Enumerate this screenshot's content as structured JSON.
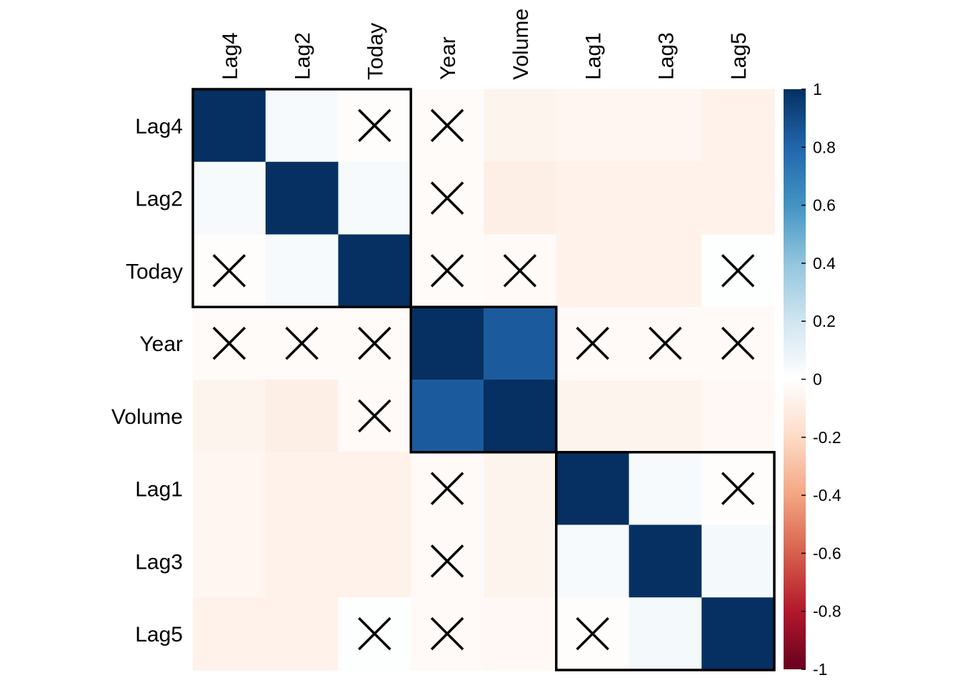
{
  "chart_data": {
    "type": "heatmap",
    "variables": [
      "Lag4",
      "Lag2",
      "Today",
      "Year",
      "Volume",
      "Lag1",
      "Lag3",
      "Lag5"
    ],
    "matrix": [
      [
        1.0,
        0.04,
        -0.01,
        -0.02,
        -0.06,
        -0.05,
        -0.05,
        -0.07
      ],
      [
        0.04,
        1.0,
        0.04,
        -0.02,
        -0.09,
        -0.07,
        -0.07,
        -0.07
      ],
      [
        -0.01,
        0.04,
        1.0,
        -0.02,
        -0.03,
        -0.07,
        -0.07,
        0.01
      ],
      [
        -0.02,
        -0.02,
        -0.02,
        1.0,
        0.84,
        -0.03,
        -0.03,
        -0.03
      ],
      [
        -0.06,
        -0.09,
        -0.03,
        0.84,
        1.0,
        -0.06,
        -0.06,
        -0.04
      ],
      [
        -0.05,
        -0.07,
        -0.07,
        -0.03,
        -0.06,
        1.0,
        0.04,
        -0.01
      ],
      [
        -0.05,
        -0.07,
        -0.07,
        -0.03,
        -0.06,
        0.04,
        1.0,
        0.05
      ],
      [
        -0.07,
        -0.07,
        0.01,
        -0.03,
        -0.04,
        -0.01,
        0.05,
        1.0
      ]
    ],
    "insignificant_cells": [
      [
        0,
        2
      ],
      [
        0,
        3
      ],
      [
        1,
        3
      ],
      [
        2,
        0
      ],
      [
        2,
        3
      ],
      [
        2,
        4
      ],
      [
        2,
        7
      ],
      [
        3,
        0
      ],
      [
        3,
        1
      ],
      [
        3,
        2
      ],
      [
        3,
        5
      ],
      [
        3,
        6
      ],
      [
        3,
        7
      ],
      [
        4,
        2
      ],
      [
        5,
        3
      ],
      [
        5,
        7
      ],
      [
        6,
        3
      ],
      [
        7,
        2
      ],
      [
        7,
        3
      ],
      [
        7,
        5
      ]
    ],
    "cluster_boxes": [
      {
        "start": 0,
        "end": 2
      },
      {
        "start": 3,
        "end": 4
      },
      {
        "start": 5,
        "end": 7
      }
    ],
    "colorbar": {
      "range": [
        -1,
        1
      ],
      "tick_values": [
        1,
        0.8,
        0.6,
        0.4,
        0.2,
        0,
        -0.2,
        -0.4,
        -0.6,
        -0.8,
        -1
      ],
      "tick_labels": [
        "1",
        "0.8",
        "0.6",
        "0.4",
        "0.2",
        "0",
        "-0.2",
        "-0.4",
        "-0.6",
        "-0.8",
        "-1"
      ],
      "colors": {
        "-1": "#67001F",
        "-0.8": "#B2182B",
        "-0.6": "#D6604D",
        "-0.4": "#F4A582",
        "-0.2": "#FDDBC7",
        "0": "#FFFFFF",
        "0.2": "#D1E5F0",
        "0.4": "#92C5DE",
        "0.6": "#4393C3",
        "0.8": "#2166AC",
        "1": "#053061"
      }
    },
    "grid": false,
    "legend_placement": "right"
  }
}
